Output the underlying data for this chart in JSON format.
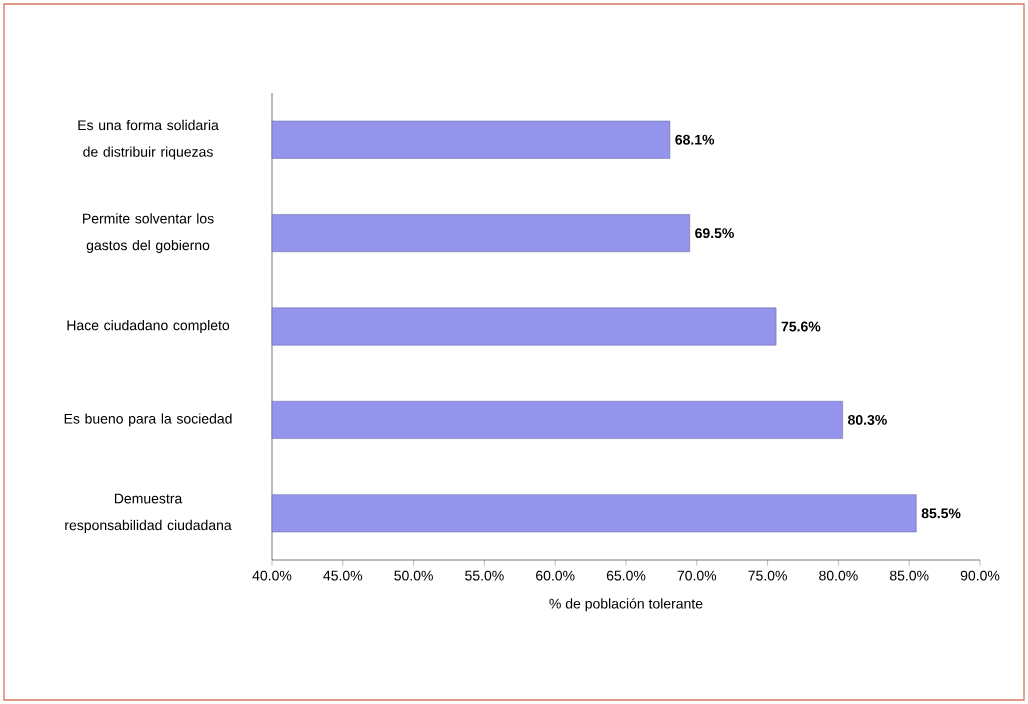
{
  "chart_data": {
    "type": "bar",
    "orientation": "horizontal",
    "xlabel": "%  de población tolerante",
    "categories": [
      "Es una forma solidaria de distribuir riquezas",
      "Permite solventar los gastos del gobierno",
      "Hace ciudadano completo",
      "Es bueno para la sociedad",
      "Demuestra responsabilidad ciudadana"
    ],
    "values": [
      68.1,
      69.5,
      75.6,
      80.3,
      85.5
    ],
    "value_labels": [
      "68.1%",
      "69.5%",
      "75.6%",
      "80.3%",
      "85.5%"
    ],
    "color": "#9494ec",
    "xlim": [
      40,
      90
    ],
    "xticks": [
      {
        "value": 40,
        "label": "40.0%"
      },
      {
        "value": 45,
        "label": "45.0%"
      },
      {
        "value": 50,
        "label": "50.0%"
      },
      {
        "value": 55,
        "label": "55.0%"
      },
      {
        "value": 60,
        "label": "60.0%"
      },
      {
        "value": 65,
        "label": "65.0%"
      },
      {
        "value": 70,
        "label": "70.0%"
      },
      {
        "value": 75,
        "label": "75.0%"
      },
      {
        "value": 80,
        "label": "80.0%"
      },
      {
        "value": 85,
        "label": "85.0%"
      },
      {
        "value": 90,
        "label": "90.0%"
      }
    ],
    "grid": false
  }
}
